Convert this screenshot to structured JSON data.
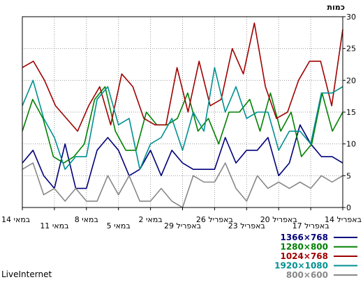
{
  "chart_data": {
    "type": "line",
    "ylabel": "כמות",
    "ylim": [
      0,
      30
    ],
    "yticks": [
      0,
      5,
      10,
      15,
      20,
      25,
      30
    ],
    "x_tick_labels": [
      "14 במאי",
      "11 במאי",
      "8 במאי",
      "5 במאי",
      "2 במאי",
      "29 באפריל",
      "26 באפריל",
      "23 באפריל",
      "20 באפריל",
      "17 באפריל",
      "14 באפריל"
    ],
    "grid": true,
    "legend_position": "bottom-right",
    "series": [
      {
        "name": "1366×768",
        "color": "#00007a",
        "values": [
          7,
          9,
          5,
          3,
          10,
          3,
          3,
          9,
          11,
          9,
          5,
          6,
          9,
          5,
          9,
          7,
          6,
          6,
          6,
          11,
          7,
          9,
          9,
          11,
          5,
          7,
          13,
          10,
          8,
          8,
          7
        ]
      },
      {
        "name": "1280×800",
        "color": "#008000",
        "values": [
          12,
          17,
          14,
          8,
          7,
          8,
          10,
          17,
          19,
          12,
          9,
          9,
          15,
          13,
          13,
          14,
          18,
          12,
          14,
          10,
          15,
          15,
          17,
          12,
          18,
          12,
          15,
          8,
          10,
          18,
          12,
          15
        ]
      },
      {
        "name": "1024×768",
        "color": "#a00000",
        "values": [
          22,
          23,
          20,
          16,
          14,
          12,
          16,
          19,
          13,
          21,
          19,
          14,
          13,
          13,
          22,
          15,
          23,
          16,
          17,
          25,
          21,
          29,
          19,
          14,
          15,
          20,
          23,
          23,
          16,
          28
        ]
      },
      {
        "name": "1920×1080",
        "color": "#009090",
        "values": [
          16,
          20,
          14,
          11,
          6,
          8,
          8,
          17,
          19,
          13,
          14,
          6,
          10,
          11,
          14,
          9,
          15,
          12,
          22,
          15,
          19,
          14,
          15,
          15,
          9,
          12,
          12,
          10,
          18,
          18,
          19
        ]
      },
      {
        "name": "800×600",
        "color": "#888888",
        "values": [
          6,
          7,
          2,
          3,
          1,
          3,
          1,
          1,
          5,
          2,
          5,
          1,
          1,
          3,
          1,
          0,
          5,
          4,
          4,
          7,
          3,
          1,
          5,
          3,
          4,
          3,
          4,
          3,
          5,
          4,
          5
        ]
      }
    ]
  },
  "watermark": "LiveInternet"
}
